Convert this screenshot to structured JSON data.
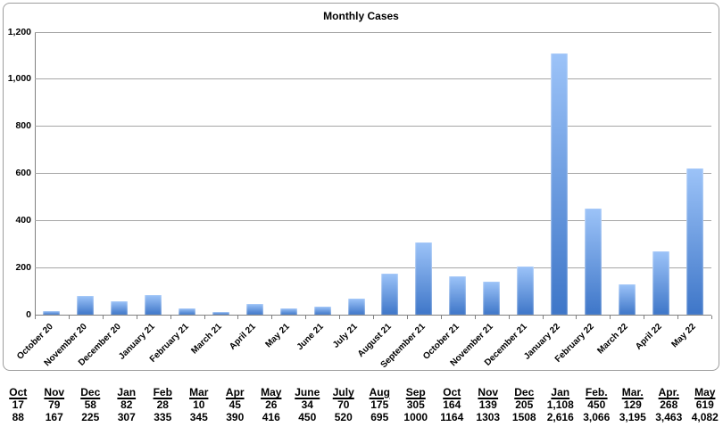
{
  "chart_data": {
    "type": "bar",
    "title": "Monthly Cases",
    "categories": [
      "October 20",
      "November 20",
      "December 20",
      "January 21",
      "February 21",
      "March 21",
      "April 21",
      "May 21",
      "June 21",
      "July 21",
      "August 21",
      "September 21",
      "October 21",
      "November 21",
      "December 21",
      "January 22",
      "February 22",
      "March 22",
      "April 22",
      "May 22"
    ],
    "values": [
      17,
      79,
      58,
      82,
      28,
      10,
      45,
      26,
      34,
      70,
      175,
      305,
      164,
      139,
      205,
      1108,
      450,
      129,
      268,
      619
    ],
    "xlabel": "",
    "ylabel": "",
    "ylim": [
      0,
      1200
    ],
    "yticks": [
      0,
      200,
      400,
      600,
      800,
      1000,
      1200
    ],
    "ytick_labels": [
      "0",
      "200",
      "400",
      "600",
      "800",
      "1,000",
      "1,200"
    ],
    "grid": true,
    "legend": "none",
    "bar_gradient_top": "#9CC3F8",
    "bar_gradient_bottom": "#3E76C8"
  },
  "table": {
    "columns": [
      {
        "month": "Oct",
        "monthly": "17",
        "cumulative": "88"
      },
      {
        "month": "Nov",
        "monthly": "79",
        "cumulative": "167"
      },
      {
        "month": "Dec",
        "monthly": "58",
        "cumulative": "225"
      },
      {
        "month": "Jan",
        "monthly": "82",
        "cumulative": "307"
      },
      {
        "month": "Feb",
        "monthly": "28",
        "cumulative": "335"
      },
      {
        "month": "Mar",
        "monthly": "10",
        "cumulative": "345"
      },
      {
        "month": "Apr",
        "monthly": "45",
        "cumulative": "390"
      },
      {
        "month": "May",
        "monthly": "26",
        "cumulative": "416"
      },
      {
        "month": "June",
        "monthly": "34",
        "cumulative": "450"
      },
      {
        "month": "July",
        "monthly": "70",
        "cumulative": "520"
      },
      {
        "month": "Aug",
        "monthly": "175",
        "cumulative": "695"
      },
      {
        "month": "Sep",
        "monthly": "305",
        "cumulative": "1000"
      },
      {
        "month": "Oct",
        "monthly": "164",
        "cumulative": "1164"
      },
      {
        "month": "Nov",
        "monthly": "139",
        "cumulative": "1303"
      },
      {
        "month": "Dec",
        "monthly": "205",
        "cumulative": "1508"
      },
      {
        "month": "Jan",
        "monthly": "1,108",
        "cumulative": "2,616"
      },
      {
        "month": "Feb.",
        "monthly": "450",
        "cumulative": "3,066"
      },
      {
        "month": "Mar.",
        "monthly": "129",
        "cumulative": "3,195"
      },
      {
        "month": "Apr.",
        "monthly": "268",
        "cumulative": "3,463"
      },
      {
        "month": "May",
        "monthly": "619",
        "cumulative": "4,082"
      }
    ]
  },
  "colors": {
    "gridline": "#A6A6A6",
    "axis": "#808080",
    "chart_border": "#9D9D9D",
    "text": "#000000"
  }
}
